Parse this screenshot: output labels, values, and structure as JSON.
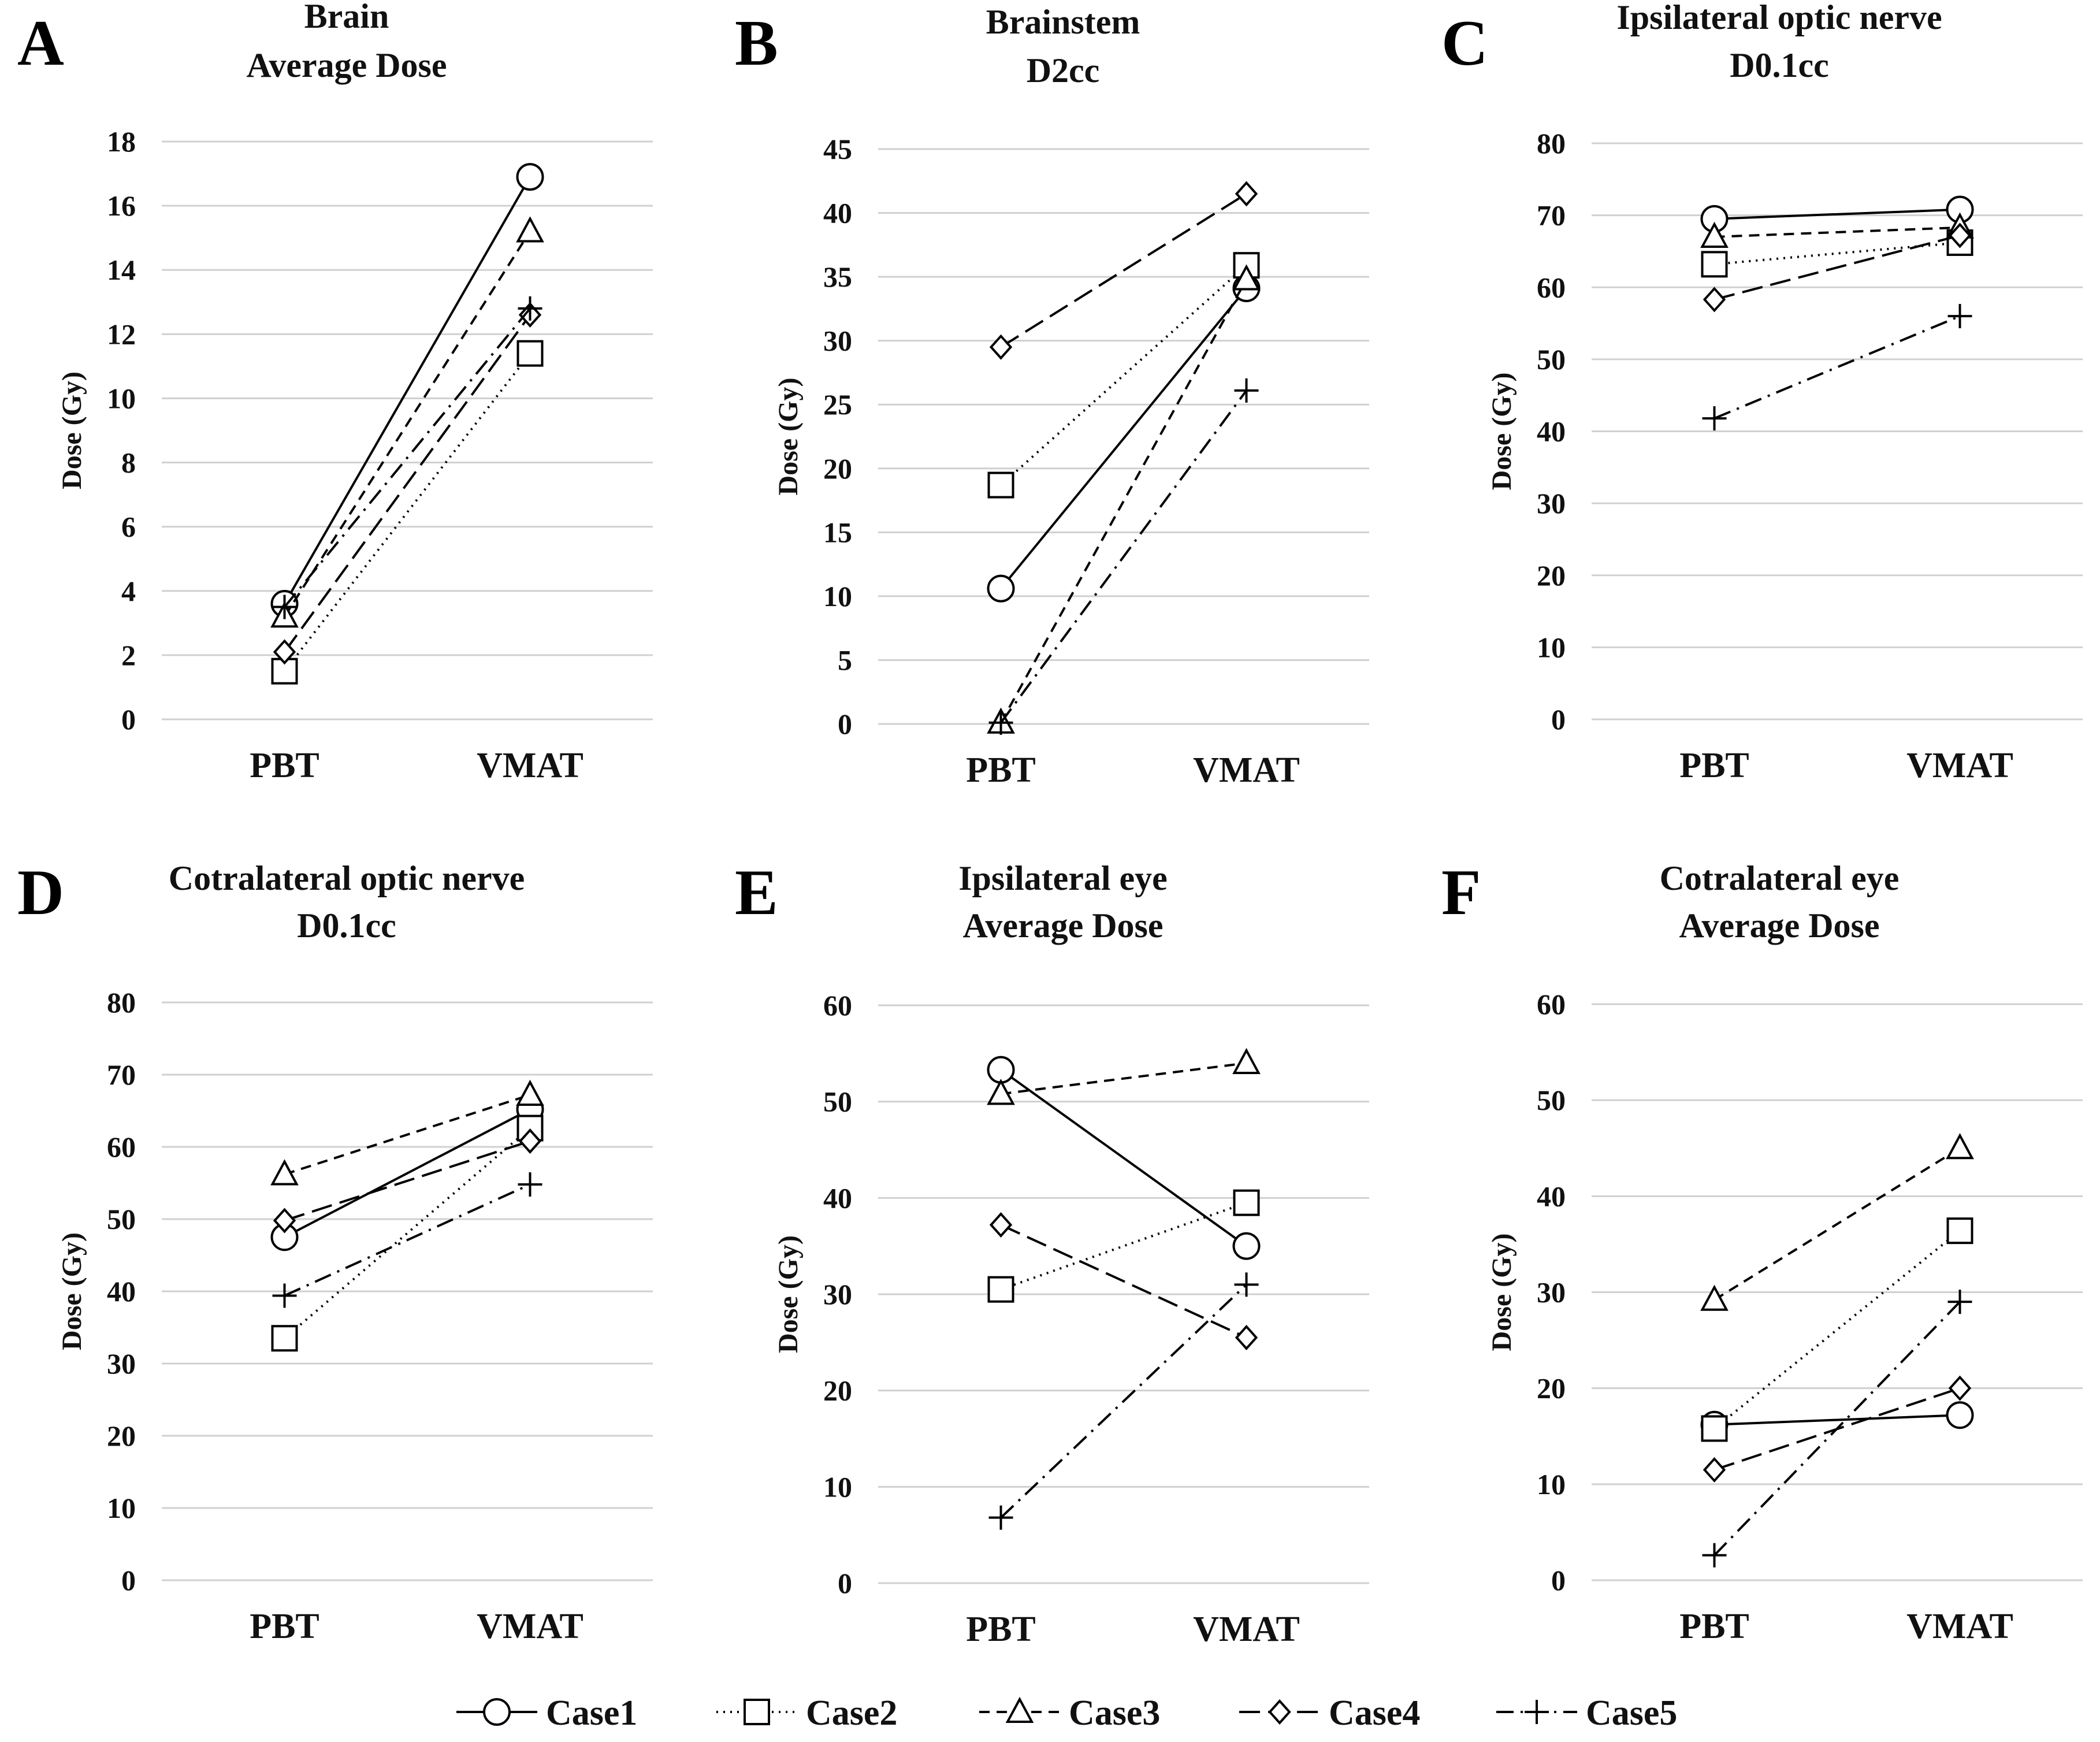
{
  "series_styles": {
    "line_color": "#000000",
    "grid_color": "#d0d0d0",
    "marker_fill": "#ffffff"
  },
  "legend": [
    {
      "name": "Case1",
      "marker": "circle",
      "dash": "solid"
    },
    {
      "name": "Case2",
      "marker": "square",
      "dash": "dotted"
    },
    {
      "name": "Case3",
      "marker": "triangle",
      "dash": "dashed"
    },
    {
      "name": "Case4",
      "marker": "diamond",
      "dash": "longdash"
    },
    {
      "name": "Case5",
      "marker": "plus",
      "dash": "dashdot"
    }
  ],
  "chart_data": [
    {
      "panel": "A",
      "type": "line",
      "title": [
        "Brain",
        "Average Dose"
      ],
      "ylabel": "Dose (Gy)",
      "categories": [
        "PBT",
        "VMAT"
      ],
      "ylim": [
        0,
        18
      ],
      "yticks": [
        0,
        2,
        4,
        6,
        8,
        10,
        12,
        14,
        16,
        18
      ],
      "series": [
        {
          "name": "Case1",
          "values": [
            3.6,
            16.9
          ]
        },
        {
          "name": "Case2",
          "values": [
            1.5,
            11.4
          ]
        },
        {
          "name": "Case3",
          "values": [
            3.2,
            15.2
          ]
        },
        {
          "name": "Case4",
          "values": [
            2.1,
            12.6
          ]
        },
        {
          "name": "Case5",
          "values": [
            3.5,
            12.8
          ]
        }
      ]
    },
    {
      "panel": "B",
      "type": "line",
      "title": [
        "Brainstem",
        "D2cc"
      ],
      "ylabel": "Dose (Gy)",
      "categories": [
        "PBT",
        "VMAT"
      ],
      "ylim": [
        0,
        45
      ],
      "yticks": [
        0,
        5,
        10,
        15,
        20,
        25,
        30,
        35,
        40,
        45
      ],
      "series": [
        {
          "name": "Case1",
          "values": [
            10.6,
            34.1
          ]
        },
        {
          "name": "Case2",
          "values": [
            18.7,
            35.9
          ]
        },
        {
          "name": "Case3",
          "values": [
            0.1,
            34.8
          ]
        },
        {
          "name": "Case4",
          "values": [
            29.5,
            41.5
          ]
        },
        {
          "name": "Case5",
          "values": [
            0.1,
            26.1
          ]
        }
      ]
    },
    {
      "panel": "C",
      "type": "line",
      "title": [
        "Ipsilateral optic nerve",
        "D0.1cc"
      ],
      "ylabel": "Dose (Gy)",
      "categories": [
        "PBT",
        "VMAT"
      ],
      "ylim": [
        0,
        80
      ],
      "yticks": [
        0,
        10,
        20,
        30,
        40,
        50,
        60,
        70,
        80
      ],
      "series": [
        {
          "name": "Case1",
          "values": [
            69.5,
            70.8
          ]
        },
        {
          "name": "Case2",
          "values": [
            63.2,
            66.2
          ]
        },
        {
          "name": "Case3",
          "values": [
            67.0,
            68.3
          ]
        },
        {
          "name": "Case4",
          "values": [
            58.3,
            67.2
          ]
        },
        {
          "name": "Case5",
          "values": [
            41.8,
            56.0
          ]
        }
      ]
    },
    {
      "panel": "D",
      "type": "line",
      "title": [
        "Cotralateral  optic nerve",
        "D0.1cc"
      ],
      "ylabel": "Dose (Gy)",
      "categories": [
        "PBT",
        "VMAT"
      ],
      "ylim": [
        0,
        80
      ],
      "yticks": [
        0,
        10,
        20,
        30,
        40,
        50,
        60,
        70,
        80
      ],
      "series": [
        {
          "name": "Case1",
          "values": [
            47.5,
            65.2
          ]
        },
        {
          "name": "Case2",
          "values": [
            33.5,
            62.6
          ]
        },
        {
          "name": "Case3",
          "values": [
            56.2,
            67.2
          ]
        },
        {
          "name": "Case4",
          "values": [
            49.8,
            60.8
          ]
        },
        {
          "name": "Case5",
          "values": [
            39.4,
            54.8
          ]
        }
      ]
    },
    {
      "panel": "E",
      "type": "line",
      "title": [
        "Ipsilateral eye",
        "Average Dose"
      ],
      "ylabel": "Dose (Gy)",
      "categories": [
        "PBT",
        "VMAT"
      ],
      "ylim": [
        0,
        60
      ],
      "yticks": [
        0,
        10,
        20,
        30,
        40,
        50,
        60
      ],
      "series": [
        {
          "name": "Case1",
          "values": [
            53.3,
            35.0
          ]
        },
        {
          "name": "Case2",
          "values": [
            30.5,
            39.5
          ]
        },
        {
          "name": "Case3",
          "values": [
            50.8,
            54.0
          ]
        },
        {
          "name": "Case4",
          "values": [
            37.2,
            25.5
          ]
        },
        {
          "name": "Case5",
          "values": [
            6.8,
            31.0
          ]
        }
      ]
    },
    {
      "panel": "F",
      "type": "line",
      "title": [
        "Cotralateral  eye",
        "Average Dose"
      ],
      "ylabel": "Dose (Gy)",
      "categories": [
        "PBT",
        "VMAT"
      ],
      "ylim": [
        0,
        60
      ],
      "yticks": [
        0,
        10,
        20,
        30,
        40,
        50,
        60
      ],
      "series": [
        {
          "name": "Case1",
          "values": [
            16.2,
            17.2
          ]
        },
        {
          "name": "Case2",
          "values": [
            15.8,
            36.4
          ]
        },
        {
          "name": "Case3",
          "values": [
            29.2,
            45.0
          ]
        },
        {
          "name": "Case4",
          "values": [
            11.5,
            20.0
          ]
        },
        {
          "name": "Case5",
          "values": [
            2.6,
            29.0
          ]
        }
      ]
    }
  ]
}
